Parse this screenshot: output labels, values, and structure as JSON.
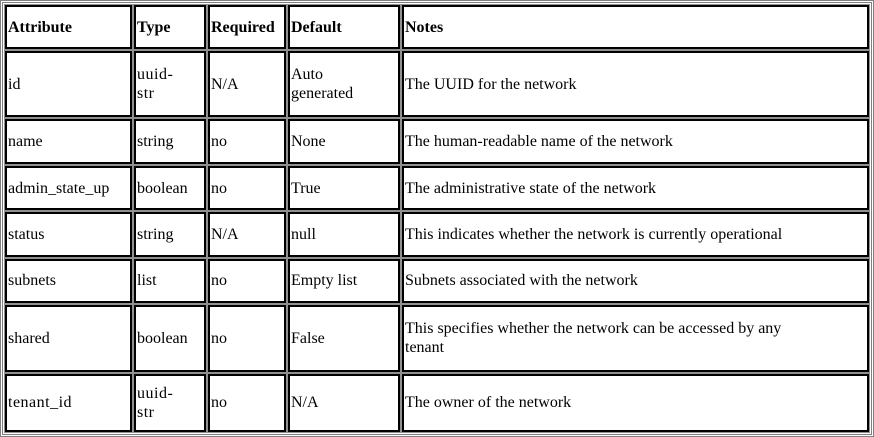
{
  "headers": [
    "Attribute",
    "Type",
    "Required",
    "Default",
    "Notes"
  ],
  "rows": [
    {
      "attribute": "id",
      "type_line1": "uuid-",
      "type_line2": "str",
      "required": "N/A",
      "default_line1": "Auto",
      "default_line2": "generated",
      "notes_line1": "The UUID for the network",
      "notes_line2": ""
    },
    {
      "attribute": "name",
      "type_line1": "string",
      "type_line2": "",
      "required": "no",
      "default_line1": "None",
      "default_line2": "",
      "notes_line1": "The human-readable name of the network",
      "notes_line2": ""
    },
    {
      "attribute": "admin_state_up",
      "type_line1": "boolean",
      "type_line2": "",
      "required": "no",
      "default_line1": "True",
      "default_line2": "",
      "notes_line1": "The administrative state of the network",
      "notes_line2": ""
    },
    {
      "attribute": "status",
      "type_line1": "string",
      "type_line2": "",
      "required": "N/A",
      "default_line1": "null",
      "default_line2": "",
      "notes_line1": "This indicates whether the network is currently operational",
      "notes_line2": ""
    },
    {
      "attribute": "subnets",
      "type_line1": "list",
      "type_line2": "",
      "required": "no",
      "default_line1": "Empty list",
      "default_line2": "",
      "notes_line1": "Subnets associated with the network",
      "notes_line2": ""
    },
    {
      "attribute": "shared",
      "type_line1": "boolean",
      "type_line2": "",
      "required": "no",
      "default_line1": "False",
      "default_line2": "",
      "notes_line1": "This specifies whether the network can be accessed by any",
      "notes_line2": "tenant"
    },
    {
      "attribute": "tenant_id",
      "type_line1": "uuid-",
      "type_line2": "str",
      "required": "no",
      "default_line1": "N/A",
      "default_line2": "",
      "notes_line1": "The owner of the network",
      "notes_line2": ""
    }
  ]
}
